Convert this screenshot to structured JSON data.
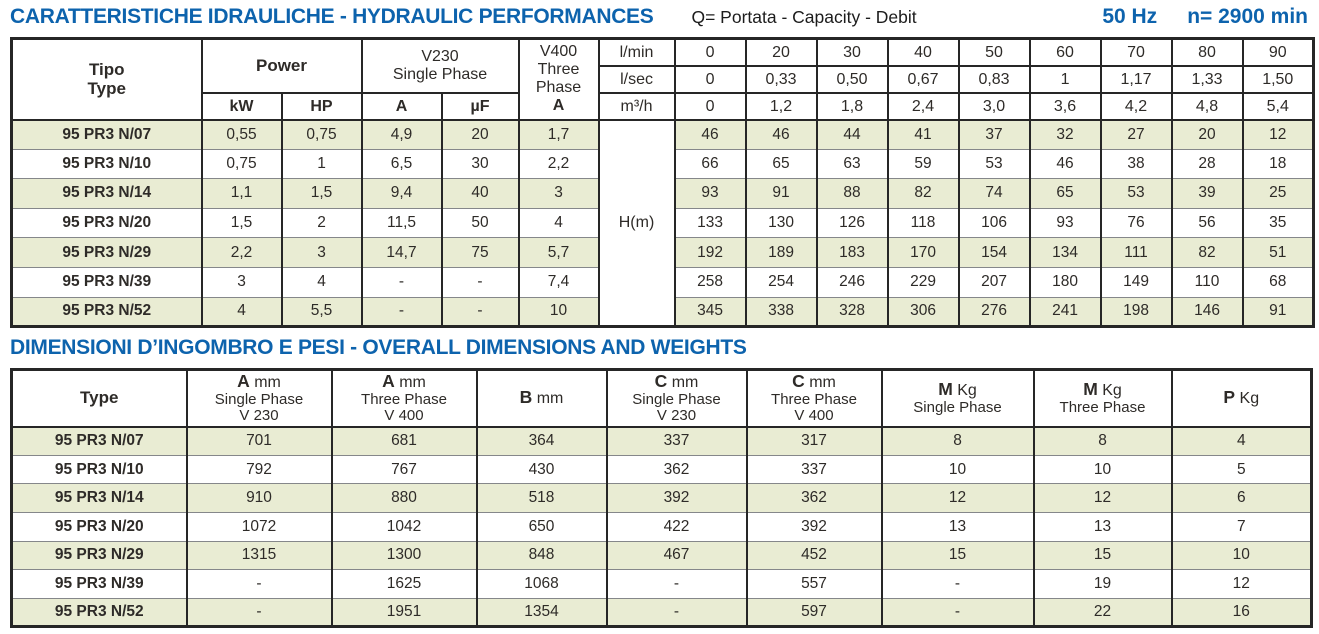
{
  "colors": {
    "title_blue": "#0d63ad",
    "row_green": "#e9ecd3",
    "row_white": "#ffffff",
    "border_dark": "#262626",
    "separator_gray": "#85878a"
  },
  "hydraulic": {
    "title": "CARATTERISTICHE IDRAULICHE - HYDRAULIC PERFORMANCES",
    "subtitle": "Q= Portata - Capacity - Debit",
    "frequency": "50 Hz",
    "speed": "n= 2900 min",
    "header": {
      "tipo": "Tipo",
      "type": "Type",
      "power": "Power",
      "kw": "kW",
      "hp": "HP",
      "v230_line1": "V230",
      "v230_line2": "Single Phase",
      "a": "A",
      "uf": "µF",
      "v400_line1": "V400",
      "v400_line2": "Three",
      "v400_line3": "Phase",
      "v400_a": "A",
      "lmin": "l/min",
      "lsec": "l/sec",
      "m3h": "m³/h"
    },
    "flow": {
      "lmin": [
        "0",
        "20",
        "30",
        "40",
        "50",
        "60",
        "70",
        "80",
        "90"
      ],
      "lsec": [
        "0",
        "0,33",
        "0,50",
        "0,67",
        "0,83",
        "1",
        "1,17",
        "1,33",
        "1,50"
      ],
      "m3h": [
        "0",
        "1,2",
        "1,8",
        "2,4",
        "3,0",
        "3,6",
        "4,2",
        "4,8",
        "5,4"
      ]
    },
    "hm_label": "H(m)",
    "rows": [
      {
        "type": "95 PR3 N/07",
        "kw": "0,55",
        "hp": "0,75",
        "a": "4,9",
        "uf": "20",
        "a400": "1,7",
        "h": [
          "46",
          "46",
          "44",
          "41",
          "37",
          "32",
          "27",
          "20",
          "12"
        ]
      },
      {
        "type": "95 PR3 N/10",
        "kw": "0,75",
        "hp": "1",
        "a": "6,5",
        "uf": "30",
        "a400": "2,2",
        "h": [
          "66",
          "65",
          "63",
          "59",
          "53",
          "46",
          "38",
          "28",
          "18"
        ]
      },
      {
        "type": "95 PR3 N/14",
        "kw": "1,1",
        "hp": "1,5",
        "a": "9,4",
        "uf": "40",
        "a400": "3",
        "h": [
          "93",
          "91",
          "88",
          "82",
          "74",
          "65",
          "53",
          "39",
          "25"
        ]
      },
      {
        "type": "95 PR3 N/20",
        "kw": "1,5",
        "hp": "2",
        "a": "11,5",
        "uf": "50",
        "a400": "4",
        "h": [
          "133",
          "130",
          "126",
          "118",
          "106",
          "93",
          "76",
          "56",
          "35"
        ]
      },
      {
        "type": "95 PR3 N/29",
        "kw": "2,2",
        "hp": "3",
        "a": "14,7",
        "uf": "75",
        "a400": "5,7",
        "h": [
          "192",
          "189",
          "183",
          "170",
          "154",
          "134",
          "111",
          "82",
          "51"
        ]
      },
      {
        "type": "95 PR3 N/39",
        "kw": "3",
        "hp": "4",
        "a": "-",
        "uf": "-",
        "a400": "7,4",
        "h": [
          "258",
          "254",
          "246",
          "229",
          "207",
          "180",
          "149",
          "110",
          "68"
        ]
      },
      {
        "type": "95 PR3 N/52",
        "kw": "4",
        "hp": "5,5",
        "a": "-",
        "uf": "-",
        "a400": "10",
        "h": [
          "345",
          "338",
          "328",
          "306",
          "276",
          "241",
          "198",
          "146",
          "91"
        ]
      }
    ]
  },
  "dimensions": {
    "title": "DIMENSIONI D’INGOMBRO E PESI - OVERALL DIMENSIONS AND WEIGHTS",
    "headers": [
      {
        "l1b": "Type",
        "l1r": "",
        "l2": "",
        "l3": ""
      },
      {
        "l1b": "A",
        "l1r": " mm",
        "l2": "Single Phase",
        "l3": "V 230"
      },
      {
        "l1b": "A",
        "l1r": " mm",
        "l2": "Three Phase",
        "l3": "V 400"
      },
      {
        "l1b": "B",
        "l1r": " mm",
        "l2": "",
        "l3": ""
      },
      {
        "l1b": "C",
        "l1r": " mm",
        "l2": "Single Phase",
        "l3": "V 230"
      },
      {
        "l1b": "C",
        "l1r": " mm",
        "l2": "Three Phase",
        "l3": "V 400"
      },
      {
        "l1b": "M",
        "l1r": " Kg",
        "l2": "Single Phase",
        "l3": ""
      },
      {
        "l1b": "M",
        "l1r": " Kg",
        "l2": "Three Phase",
        "l3": ""
      },
      {
        "l1b": "P",
        "l1r": " Kg",
        "l2": "",
        "l3": ""
      }
    ],
    "rows": [
      [
        "95 PR3 N/07",
        "701",
        "681",
        "364",
        "337",
        "317",
        "8",
        "8",
        "4"
      ],
      [
        "95 PR3 N/10",
        "792",
        "767",
        "430",
        "362",
        "337",
        "10",
        "10",
        "5"
      ],
      [
        "95 PR3 N/14",
        "910",
        "880",
        "518",
        "392",
        "362",
        "12",
        "12",
        "6"
      ],
      [
        "95 PR3 N/20",
        "1072",
        "1042",
        "650",
        "422",
        "392",
        "13",
        "13",
        "7"
      ],
      [
        "95 PR3 N/29",
        "1315",
        "1300",
        "848",
        "467",
        "452",
        "15",
        "15",
        "10"
      ],
      [
        "95 PR3 N/39",
        "-",
        "1625",
        "1068",
        "-",
        "557",
        "-",
        "19",
        "12"
      ],
      [
        "95 PR3 N/52",
        "-",
        "1951",
        "1354",
        "-",
        "597",
        "-",
        "22",
        "16"
      ]
    ]
  }
}
